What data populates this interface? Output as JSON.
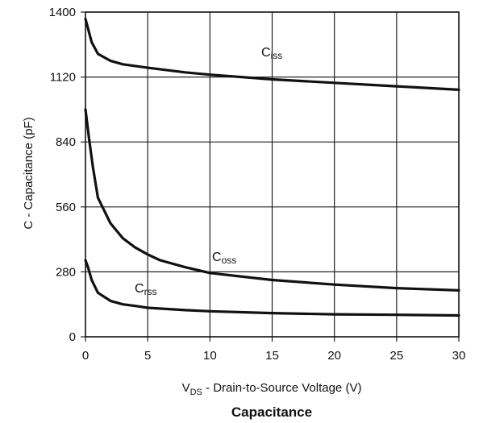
{
  "chart_data": {
    "type": "line",
    "title": "Capacitance",
    "xlabel": {
      "main": "V",
      "sub": "DS",
      "rest": " - Drain-to-Source Voltage (V)"
    },
    "ylabel": "C - Capacitance (pF)",
    "xlim": [
      0,
      30
    ],
    "ylim": [
      0,
      1400
    ],
    "x_ticks": [
      "0",
      "5",
      "10",
      "15",
      "20",
      "25",
      "30"
    ],
    "y_ticks": [
      "0",
      "280",
      "560",
      "840",
      "1120",
      "1400"
    ],
    "grid": true,
    "series": [
      {
        "name": "Ciss",
        "label_main": "C",
        "label_sub": "iss",
        "x": [
          0,
          0.5,
          1,
          2,
          3,
          5,
          8,
          10,
          15,
          20,
          25,
          30
        ],
        "values": [
          1370,
          1270,
          1220,
          1190,
          1175,
          1160,
          1140,
          1130,
          1110,
          1095,
          1080,
          1065
        ]
      },
      {
        "name": "Coss",
        "label_main": "C",
        "label_sub": "oss",
        "x": [
          0,
          0.3,
          0.6,
          1,
          2,
          3,
          4,
          5,
          6,
          8,
          10,
          15,
          20,
          25,
          30
        ],
        "values": [
          980,
          850,
          730,
          600,
          490,
          425,
          385,
          355,
          330,
          300,
          275,
          245,
          225,
          210,
          200
        ]
      },
      {
        "name": "Crss",
        "label_main": "C",
        "label_sub": "rss",
        "x": [
          0,
          0.2,
          0.5,
          1,
          2,
          3,
          4,
          5,
          8,
          10,
          15,
          20,
          25,
          30
        ],
        "values": [
          330,
          300,
          245,
          190,
          155,
          140,
          133,
          125,
          115,
          110,
          102,
          97,
          95,
          92
        ]
      }
    ]
  }
}
